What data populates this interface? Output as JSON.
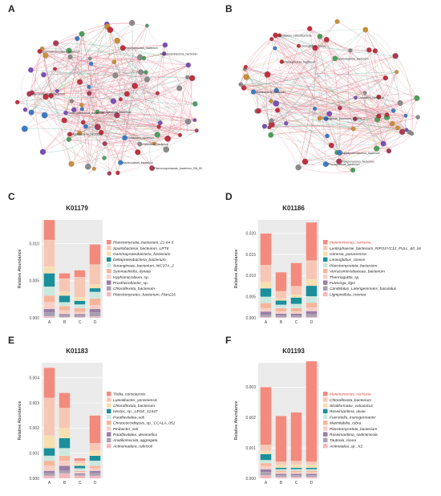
{
  "panels": {
    "a": "A",
    "b": "B",
    "c": "C",
    "d": "D",
    "e": "E",
    "f": "F"
  },
  "network_a": {
    "node_labels": [
      "Phycisphaerae_bacterium",
      "Planctomycetes_bacterium",
      "Planctomycetaceae_bacterium_SW_S0",
      "Gemmatimonadetes_bacterium",
      "Deltaproteobacteria_bacterium",
      "Chloroflexi_bacterium",
      "Acidobacteria_bacterium",
      "Candidatus_bacterium",
      "Planctomycetota_bacterium",
      "Verrucomicrobiota_bacterium",
      "Bacteroidetes_bacterium"
    ]
  },
  "network_b": {
    "node_labels": [
      "Phycisphaerae_bacterium",
      "Planctomycetes_bacterium",
      "Spartobacteria_bacterium",
      "Sorangineae_bacterium_NIC37A_2",
      "Alphaproteobacteria_bacterium",
      "Rhodopirellula_bacterium",
      "Chloroflexi_bacterium",
      "Candidatus_Latescibacteria",
      "Limnoglobus_roseus",
      "Acidobacteria_bacterium"
    ]
  },
  "chart_data": [
    {
      "type": "bar",
      "stacked": true,
      "title": "K01179",
      "ylabel": "Relative Abundance",
      "categories": [
        "A",
        "B",
        "C",
        "D"
      ],
      "ylim": [
        0,
        0.0132
      ],
      "yticks": [
        "0.000",
        "0.005",
        "0.010"
      ],
      "ytick_values": [
        0,
        0.005,
        0.01
      ],
      "grid": true,
      "legend_position": "right",
      "series": [
        {
          "name": "Planctomycetia_bacterium_21-64-5",
          "color": "#f28b7d",
          "values": [
            0.0027,
            0.0007,
            0.0009,
            0.0027
          ]
        },
        {
          "name": "Spartobacteria_bacterium_LRT6",
          "color": "#f7c7b6",
          "values": [
            0.0036,
            0.0018,
            0.0027,
            0.0027
          ]
        },
        {
          "name": "Gammaproteobacteria_bacterium",
          "color": "#f7dfb0",
          "values": [
            0.0009,
            0.0005,
            0.0005,
            0.0005
          ]
        },
        {
          "name": "Deltaproteobacteria_bacterium",
          "color": "#1b8f9a",
          "values": [
            0.0018,
            0.0009,
            0.0005,
            0.0005
          ]
        },
        {
          "name": "Sorangineae_bacterium_NIC37A_2",
          "color": "#cbe8df",
          "values": [
            0.0012,
            0.0005,
            0.0005,
            0.0009
          ]
        },
        {
          "name": "Symmachiella_dynata",
          "color": "#f6b59b",
          "values": [
            0.0009,
            0.0006,
            0.0005,
            0.0009
          ]
        },
        {
          "name": "Hyphomicrobium_sp.",
          "color": "#f7cfc4",
          "values": [
            0.0009,
            0.0005,
            0.0003,
            0.0005
          ]
        },
        {
          "name": "Prosthecobacter_sp.",
          "color": "#9a7ea6",
          "values": [
            0.0005,
            0.0002,
            0.0002,
            0.0005
          ]
        },
        {
          "name": "Chloroflexota_bacterium",
          "color": "#a9a0b0",
          "values": [
            0.0005,
            0.0002,
            0.0002,
            0.0005
          ]
        },
        {
          "name": "Planctomycetes_bacterium_Plan216",
          "color": "#f2b8be",
          "values": [
            0.0002,
            0.0001,
            0.0001,
            0.0002
          ]
        }
      ]
    },
    {
      "type": "bar",
      "stacked": true,
      "title": "K01186",
      "ylabel": "Relative Abundance",
      "categories": [
        "A",
        "B",
        "C",
        "D"
      ],
      "ylim": [
        0,
        0.0232
      ],
      "yticks": [
        "0.000",
        "0.005",
        "0.010",
        "0.015",
        "0.020"
      ],
      "ytick_values": [
        0,
        0.005,
        0.01,
        0.015,
        0.02
      ],
      "grid": true,
      "legend_position": "right",
      "series": [
        {
          "name": "Maioricimonas_rarisocia",
          "color": "#f28b7d",
          "values": [
            0.0075,
            0.0045,
            0.0055,
            0.009
          ]
        },
        {
          "name": "Lentisphaerae_bacterium_RIFOXYC12_FULL_60_16",
          "color": "#f7c7b6",
          "values": [
            0.004,
            0.0017,
            0.002,
            0.0045
          ]
        },
        {
          "name": "Gimesia_panareensis",
          "color": "#f7dfb0",
          "values": [
            0.0015,
            0.0005,
            0.0007,
            0.0015
          ]
        },
        {
          "name": "Limnoglobus_roseus",
          "color": "#1b8f9a",
          "values": [
            0.002,
            0.001,
            0.0015,
            0.0025
          ]
        },
        {
          "name": "Planctomycetota_bacterium",
          "color": "#cbe8df",
          "values": [
            0.0015,
            0.0008,
            0.001,
            0.0015
          ]
        },
        {
          "name": "Verrucomicrobiaceae_bacterium",
          "color": "#f6b59b",
          "values": [
            0.0012,
            0.0008,
            0.0008,
            0.0012
          ]
        },
        {
          "name": "Thermoguttta_sp.",
          "color": "#f7cfc4",
          "values": [
            0.0008,
            0.0005,
            0.0005,
            0.0008
          ]
        },
        {
          "name": "Fulvivirga_ligni",
          "color": "#9a7ea6",
          "values": [
            0.0008,
            0.0005,
            0.0005,
            0.0008
          ]
        },
        {
          "name": "Candidatus_Laterigemmans_baculatus",
          "color": "#a9a0b0",
          "values": [
            0.0005,
            0.0004,
            0.0004,
            0.0006
          ]
        },
        {
          "name": "Lignipirellula_cremea",
          "color": "#f2b8be",
          "values": [
            0.0002,
            0.0001,
            0.0001,
            0.0002
          ]
        }
      ]
    },
    {
      "type": "bar",
      "stacked": true,
      "title": "K01183",
      "ylabel": "Relative Abundance",
      "categories": [
        "A",
        "B",
        "C",
        "D"
      ],
      "ylim": [
        0,
        0.0046
      ],
      "yticks": [
        "0.000",
        "0.001",
        "0.002",
        "0.003",
        "0.004"
      ],
      "ytick_values": [
        0,
        0.001,
        0.002,
        0.003,
        0.004
      ],
      "grid": true,
      "legend_position": "right",
      "series": [
        {
          "name": "Tistlia_consotensis",
          "color": "#f28b7d",
          "values": [
            0.0012,
            0.0006,
            0.0001,
            0.0011
          ]
        },
        {
          "name": "Luteolibacter_yonseiensis",
          "color": "#f7c7b6",
          "values": [
            0.0015,
            0.0008,
            0.0001,
            0.0003
          ]
        },
        {
          "name": "Chloroflexota_bacterium",
          "color": "#f7dfb0",
          "values": [
            0.0005,
            0.0004,
            0.0001,
            0.0002
          ]
        },
        {
          "name": "Nostoc_sp._LEGE_12447",
          "color": "#1b8f9a",
          "values": [
            0.0003,
            0.0004,
            0.0001,
            0.0002
          ]
        },
        {
          "name": "Paraflavitalea_soli",
          "color": "#cbe8df",
          "values": [
            0.0002,
            0.0003,
            0.0001,
            0.0002
          ]
        },
        {
          "name": "Chroococcidiopsis_sp._CCALA_051",
          "color": "#f6b59b",
          "values": [
            0.0002,
            0.0002,
            5e-05,
            0.0001
          ]
        },
        {
          "name": "Pinibacter_soli",
          "color": "#f7cfc4",
          "values": [
            0.0002,
            0.0002,
            5e-05,
            0.0001
          ]
        },
        {
          "name": "Paraflavitalea_devenefica",
          "color": "#9a7ea6",
          "values": [
            0.0001,
            0.0002,
            5e-05,
            0.0001
          ]
        },
        {
          "name": "Anatilimnocola_aggregata",
          "color": "#a9a0b0",
          "values": [
            0.0001,
            0.0001,
            5e-05,
            0.0001
          ]
        },
        {
          "name": "Actinomadura_rubrisoli",
          "color": "#f2b8be",
          "values": [
            0.0001,
            0.0002,
            0.0001,
            0.0001
          ]
        }
      ]
    },
    {
      "type": "bar",
      "stacked": true,
      "title": "K01193",
      "ylabel": "Relative Abundance",
      "categories": [
        "A",
        "B",
        "C",
        "D"
      ],
      "ylim": [
        0,
        0.0038
      ],
      "yticks": [
        "0.000",
        "0.001",
        "0.002",
        "0.003"
      ],
      "ytick_values": [
        0,
        0.001,
        0.002,
        0.003
      ],
      "grid": true,
      "legend_position": "right",
      "series": [
        {
          "name": "Maioricimonas_rarisocia",
          "color": "#f28b7d",
          "values": [
            0.0019,
            0.0015,
            0.0016,
            0.0033
          ]
        },
        {
          "name": "Chloroflexota_bacterium",
          "color": "#f7c7b6",
          "values": [
            0.0002,
            0.0001,
            0.00012,
            0.0001
          ]
        },
        {
          "name": "Stratiformator_vulcanicus",
          "color": "#f7dfb0",
          "values": [
            0.0001,
            0.0001,
            0.0001,
            0.0001
          ]
        },
        {
          "name": "Roseimaritima_ulvae",
          "color": "#1b8f9a",
          "values": [
            0.0002,
            5e-05,
            5e-05,
            5e-05
          ]
        },
        {
          "name": "Fuerstiella_marisgermanici",
          "color": "#cbe8df",
          "values": [
            0.0001,
            5e-05,
            5e-05,
            5e-05
          ]
        },
        {
          "name": "Marinilabilia_rubra",
          "color": "#f6b59b",
          "values": [
            0.0001,
            5e-05,
            5e-05,
            5e-05
          ]
        },
        {
          "name": "Planctomycetota_bacterium",
          "color": "#f7cfc4",
          "values": [
            0.0001,
            5e-05,
            5e-05,
            5e-05
          ]
        },
        {
          "name": "Roseimaritima_sediminicola",
          "color": "#9a7ea6",
          "values": [
            0.0001,
            5e-05,
            5e-05,
            5e-05
          ]
        },
        {
          "name": "Tautonia_rosea",
          "color": "#a9a0b0",
          "values": [
            0.0001,
            5e-05,
            5e-05,
            5e-05
          ]
        },
        {
          "name": "Actinotalea_sp._K2",
          "color": "#f2b8be",
          "values": [
            0.0001,
            5e-05,
            5e-05,
            5e-05
          ]
        }
      ]
    }
  ]
}
